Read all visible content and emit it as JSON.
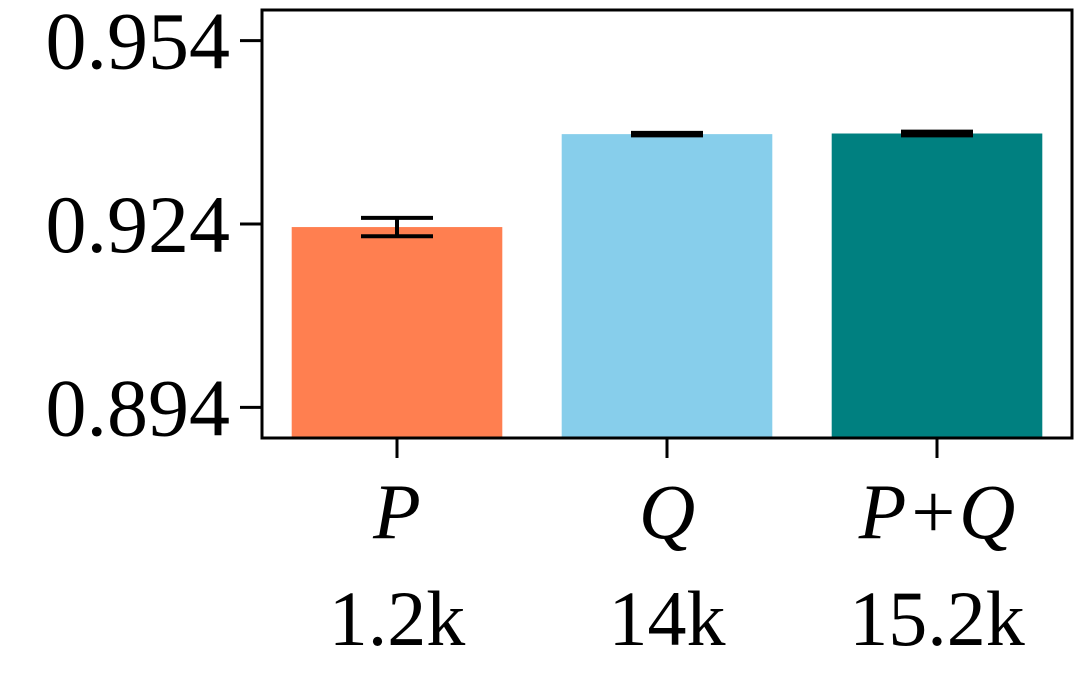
{
  "chart_data": {
    "type": "bar",
    "categories": [
      "P",
      "Q",
      "P+Q"
    ],
    "category_sublabels": [
      "1.2k",
      "14k",
      "15.2k"
    ],
    "values": [
      0.9235,
      0.9387,
      0.9388
    ],
    "errors": [
      0.0015,
      0.0002,
      0.0003
    ],
    "colors": [
      "#FF7F50",
      "#87CEEB",
      "#008080"
    ],
    "yticks": [
      "0.954",
      "0.924",
      "0.894"
    ],
    "ylim": [
      0.889,
      0.959
    ],
    "title": "",
    "xlabel": "",
    "ylabel": ""
  }
}
